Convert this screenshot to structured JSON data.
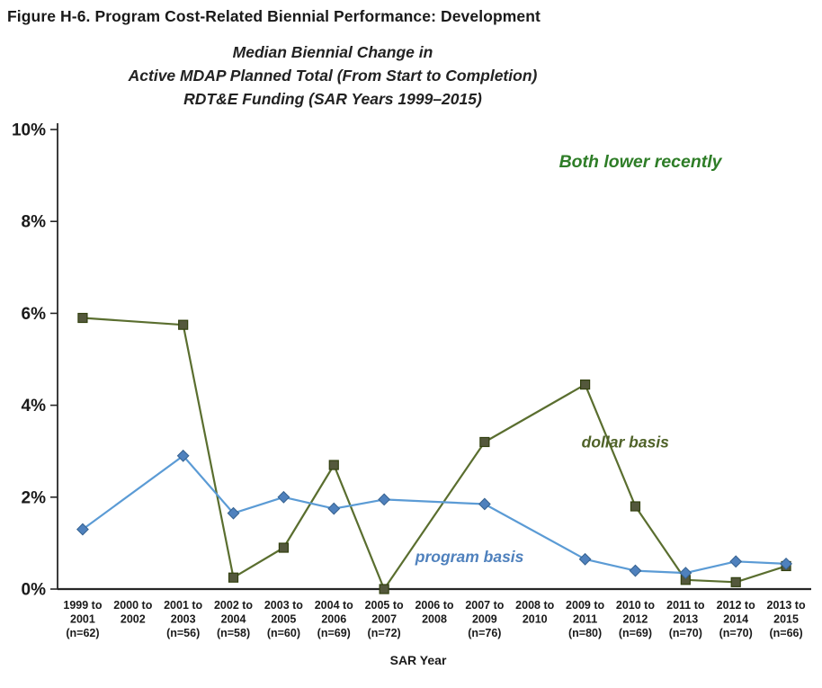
{
  "figure": {
    "title": "Figure H-6. Program Cost-Related Biennial Performance: Development"
  },
  "chart": {
    "title_lines": [
      "Median Biennial Change in",
      "Active MDAP Planned Total (From Start to Completion)",
      "RDT&E Funding (SAR Years 1999–2015)"
    ]
  },
  "chart_data": {
    "type": "line",
    "title": "Median Biennial Change in Active MDAP Planned Total (From Start to Completion) RDT&E Funding (SAR Years 1999–2015)",
    "xlabel": "SAR Year",
    "ylabel": "",
    "ylim": [
      0,
      10
    ],
    "ytick_step": 2,
    "ytick_suffix": "%",
    "grid": false,
    "legend_position": "inline-labels",
    "categories": [
      "1999 to 2001",
      "2000 to 2002",
      "2001 to 2003",
      "2002 to 2004",
      "2003 to 2005",
      "2004 to 2006",
      "2005 to 2007",
      "2006 to 2008",
      "2007 to 2009",
      "2008 to 2010",
      "2009 to 2011",
      "2010 to 2012",
      "2011 to 2013",
      "2012 to 2014",
      "2013 to 2015"
    ],
    "category_labels": [
      [
        "1999 to",
        "2001",
        "(n=62)"
      ],
      [
        "2000 to",
        "2002"
      ],
      [
        "2001 to",
        "2003",
        "(n=56)"
      ],
      [
        "2002 to",
        "2004",
        "(n=58)"
      ],
      [
        "2003 to",
        "2005",
        "(n=60)"
      ],
      [
        "2004 to",
        "2006",
        "(n=69)"
      ],
      [
        "2005 to",
        "2007",
        "(n=72)"
      ],
      [
        "2006 to",
        "2008"
      ],
      [
        "2007 to",
        "2009",
        "(n=76)"
      ],
      [
        "2008 to",
        "2010"
      ],
      [
        "2009 to",
        "2011",
        "(n=80)"
      ],
      [
        "2010 to",
        "2012",
        "(n=69)"
      ],
      [
        "2011 to",
        "2013",
        "(n=70)"
      ],
      [
        "2012 to",
        "2014",
        "(n=70)"
      ],
      [
        "2013 to",
        "2015",
        "(n=66)"
      ]
    ],
    "series": [
      {
        "name": "dollar basis",
        "marker": "square",
        "line_color": "#5A6E2F",
        "marker_fill": "#54583C",
        "marker_stroke": "#32400F",
        "values": [
          5.9,
          null,
          5.75,
          0.25,
          0.9,
          2.7,
          0.0,
          null,
          3.2,
          null,
          4.45,
          1.8,
          0.2,
          0.15,
          0.5
        ]
      },
      {
        "name": "program basis",
        "marker": "diamond",
        "line_color": "#5B9BD5",
        "marker_fill": "#4F81BD",
        "marker_stroke": "#35618F",
        "values": [
          1.3,
          null,
          2.9,
          1.65,
          2.0,
          1.75,
          1.95,
          null,
          1.85,
          null,
          0.65,
          0.4,
          0.35,
          0.6,
          0.55
        ]
      }
    ],
    "annotations": [
      {
        "text": "Both lower recently",
        "color": "#2E7D27",
        "x": 11.6,
        "y": 9.3,
        "size": 19.5
      },
      {
        "text": "dollar basis",
        "color": "#4F6228",
        "x": 11.3,
        "y": 3.2,
        "size": 17.5
      },
      {
        "text": "program basis",
        "color": "#4F81BD",
        "x": 8.2,
        "y": 0.7,
        "size": 17.5
      }
    ]
  }
}
